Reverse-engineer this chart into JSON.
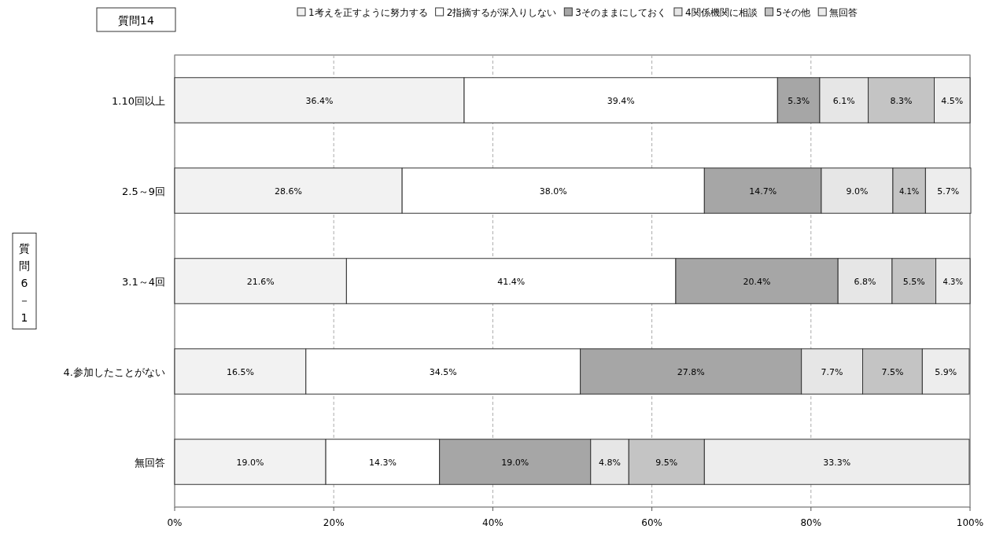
{
  "chart_data": {
    "type": "bar",
    "orientation": "horizontal",
    "stacked": true,
    "title": "質問14",
    "ylabel": "質問6－1",
    "categories": [
      "1.10回以上",
      "2.5～9回",
      "3.1～4回",
      "4.参加したことがない",
      "無回答"
    ],
    "series": [
      {
        "name": "1考えを正すように努力する",
        "color": "#f2f2f2",
        "values": [
          36.4,
          28.6,
          21.6,
          16.5,
          19.0
        ],
        "value_labels": [
          "36.4%",
          "28.6%",
          "21.6%",
          "16.5%",
          "19.0%"
        ]
      },
      {
        "name": "2指摘するが深入りしない",
        "color": "#ffffff",
        "values": [
          39.4,
          38.0,
          41.4,
          34.5,
          14.3
        ],
        "value_labels": [
          "39.4%",
          "38.0%",
          "41.4%",
          "34.5%",
          "14.3%"
        ]
      },
      {
        "name": "3そのままにしておく",
        "color": "#a6a6a6",
        "values": [
          5.3,
          14.7,
          20.4,
          27.8,
          19.0
        ],
        "value_labels": [
          "5.3%",
          "14.7%",
          "20.4%",
          "27.8%",
          "19.0%"
        ]
      },
      {
        "name": "4関係機関に相談",
        "color": "#e6e6e6",
        "values": [
          6.1,
          9.0,
          6.8,
          7.7,
          4.8
        ],
        "value_labels": [
          "6.1%",
          "9.0%",
          "6.8%",
          "7.7%",
          "4.8%"
        ]
      },
      {
        "name": "5その他",
        "color": "#c4c4c4",
        "values": [
          8.3,
          4.1,
          5.5,
          7.5,
          9.5
        ],
        "value_labels": [
          "8.3%",
          "4.1%",
          "5.5%",
          "7.5%",
          "9.5%"
        ]
      },
      {
        "name": "無回答",
        "color": "#ededed",
        "values": [
          4.5,
          5.7,
          4.3,
          5.9,
          33.3
        ],
        "value_labels": [
          "4.5%",
          "5.7%",
          "4.3%",
          "5.9%",
          "33.3%"
        ]
      }
    ],
    "xlim": [
      0,
      100
    ],
    "xticks": [
      {
        "value": 0,
        "label": "0%"
      },
      {
        "value": 20,
        "label": "20%"
      },
      {
        "value": 40,
        "label": "40%"
      },
      {
        "value": 60,
        "label": "60%"
      },
      {
        "value": 80,
        "label": "80%"
      },
      {
        "value": 100,
        "label": "100%"
      }
    ],
    "grid": "x",
    "legend": "top"
  }
}
